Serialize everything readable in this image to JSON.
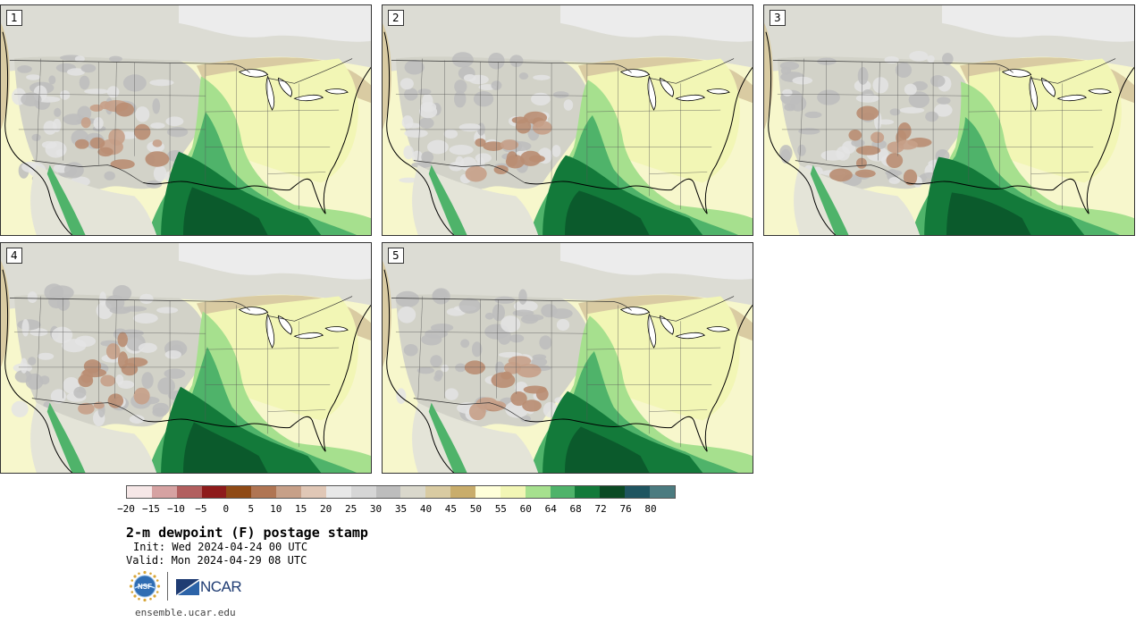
{
  "panels": [
    {
      "label": "1"
    },
    {
      "label": "2"
    },
    {
      "label": "3"
    },
    {
      "label": "4"
    },
    {
      "label": "5"
    }
  ],
  "colorbar": {
    "colors": [
      "#f6e7e7",
      "#d6a2a2",
      "#b25f5f",
      "#8e1b1b",
      "#8f4a16",
      "#b07553",
      "#c7a088",
      "#e0c7b6",
      "#e8e8e8",
      "#d6d6d6",
      "#bdbdbd",
      "#dad8cc",
      "#d9cba2",
      "#c9ad6b",
      "#ffffd9",
      "#f2f6b5",
      "#a6e08e",
      "#4fb36a",
      "#137a3a",
      "#0b4a24",
      "#1f5560",
      "#4b7b80"
    ],
    "ticks": [
      "−20",
      "−15",
      "−10",
      "−5",
      "0",
      "5",
      "10",
      "15",
      "20",
      "25",
      "30",
      "35",
      "40",
      "45",
      "50",
      "55",
      "60",
      "64",
      "68",
      "72",
      "76",
      "80"
    ]
  },
  "title": "2-m dewpoint (F) postage stamp",
  "init": "Init: Wed 2024-04-24 00 UTC",
  "valid": "Valid: Mon 2024-04-29 08 UTC",
  "footer": {
    "nsf_logo": "NSF",
    "ncar_logo": "NCAR",
    "site": "ensemble.ucar.edu"
  }
}
